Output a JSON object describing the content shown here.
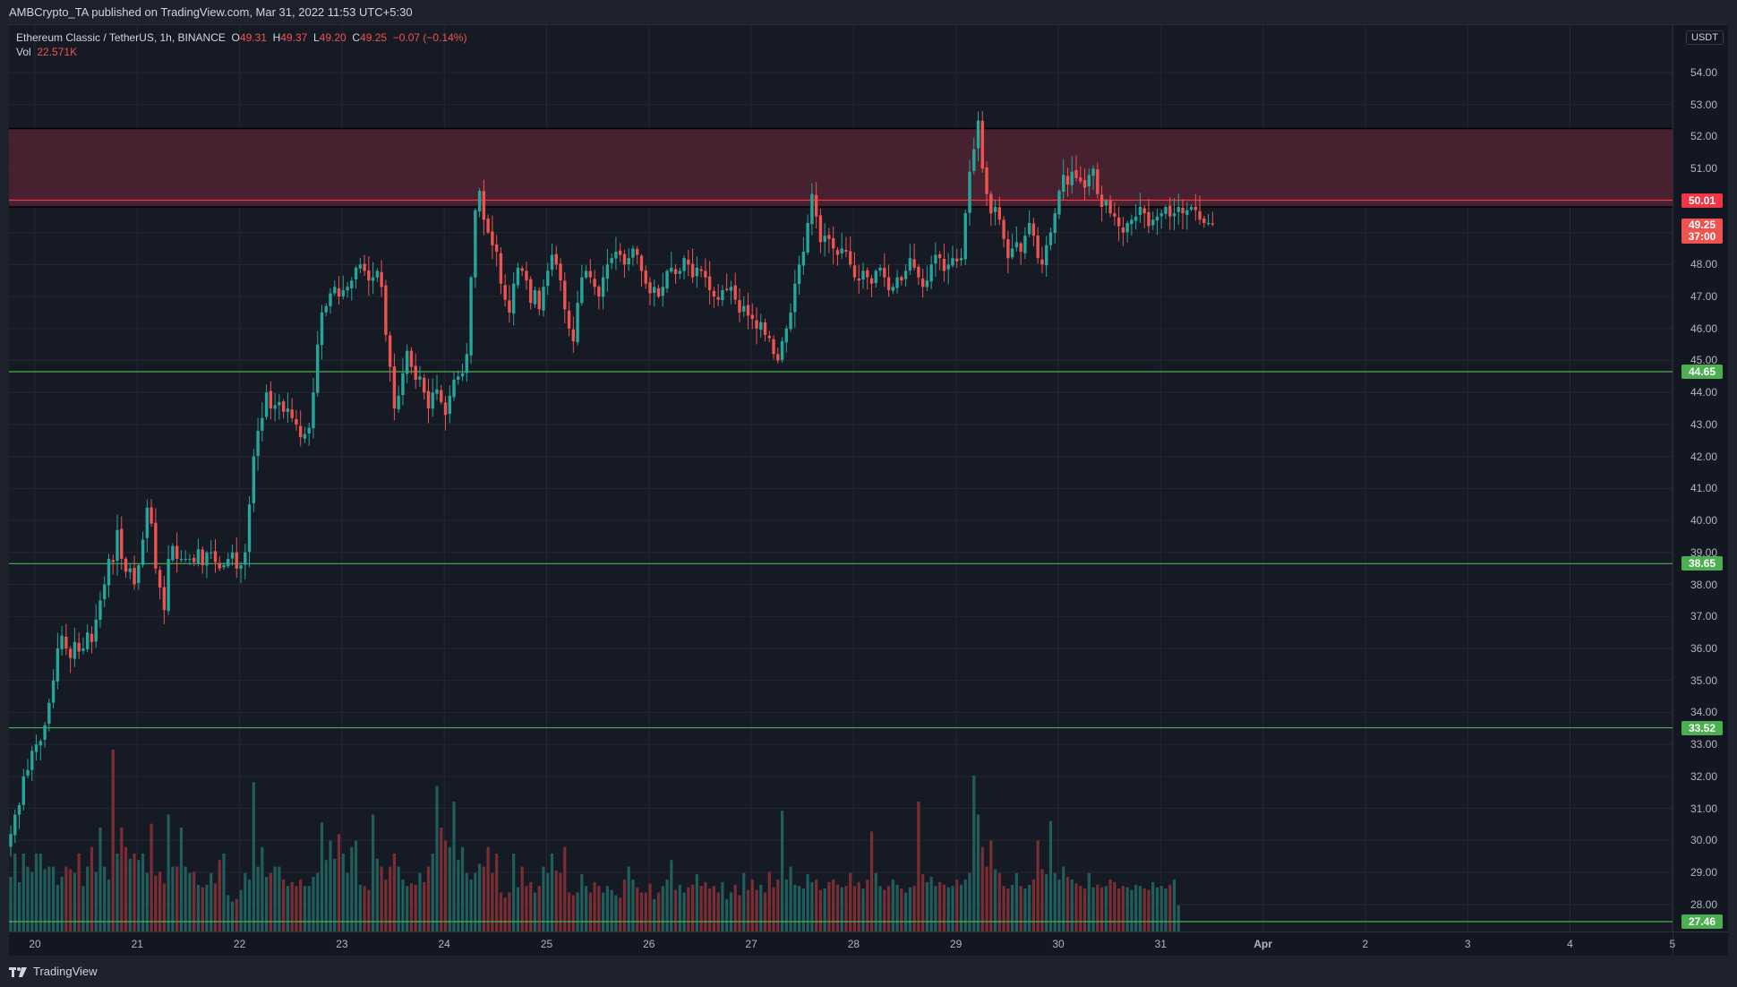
{
  "header": {
    "published": "AMBCrypto_TA published on TradingView.com, Mar 31, 2022 11:53 UTC+5:30"
  },
  "legend": {
    "symbol": "Ethereum Classic / TetherUS, 1h, BINANCE",
    "o_label": "O",
    "o": "49.31",
    "h_label": "H",
    "h": "49.37",
    "l_label": "L",
    "l": "49.20",
    "c_label": "C",
    "c": "49.25",
    "change": "−0.07 (−0.14%)",
    "vol_label": "Vol",
    "vol": "22.571K"
  },
  "axis": {
    "currency": "USDT",
    "price_ticks": [
      "54.00",
      "53.00",
      "52.00",
      "51.00",
      "50.00",
      "49.00",
      "48.00",
      "47.00",
      "46.00",
      "45.00",
      "44.00",
      "43.00",
      "42.00",
      "41.00",
      "40.00",
      "39.00",
      "38.00",
      "37.00",
      "36.00",
      "35.00",
      "34.00",
      "33.00",
      "32.00",
      "31.00",
      "30.00",
      "29.00",
      "28.00"
    ],
    "time_ticks": [
      "20",
      "21",
      "22",
      "23",
      "24",
      "25",
      "26",
      "27",
      "28",
      "29",
      "30",
      "31",
      "Apr",
      "2",
      "3",
      "4",
      "5"
    ]
  },
  "labels": {
    "resistance": "50.01",
    "last_price": "49.25",
    "countdown": "37:00",
    "support1": "44.65",
    "support2": "38.65",
    "support3": "33.52",
    "support4": "27.46"
  },
  "colors": {
    "up": "#26a69a",
    "down": "#ef5350",
    "vol_up": "#1f5e5a",
    "vol_down": "#7a2e33",
    "zone": "#4a222f",
    "support": "#4caf50",
    "resistance": "#f23645",
    "grid": "#242833"
  },
  "footer": {
    "brand": "TradingView"
  },
  "chart_data": {
    "type": "candlestick",
    "title": "Ethereum Classic / TetherUS, 1h, BINANCE",
    "ylabel": "USDT",
    "ylim": [
      27.0,
      55.0
    ],
    "x_range": [
      "Mar 20",
      "Apr 5"
    ],
    "last": {
      "open": 49.31,
      "high": 49.37,
      "low": 49.2,
      "close": 49.25,
      "change": -0.07,
      "change_pct": -0.14,
      "volume": "22.571K"
    },
    "horizontal_levels": [
      {
        "name": "resistance",
        "value": 50.01,
        "color": "#f23645"
      },
      {
        "name": "support",
        "value": 44.65,
        "color": "#4caf50"
      },
      {
        "name": "support",
        "value": 38.65,
        "color": "#4caf50"
      },
      {
        "name": "support",
        "value": 33.52,
        "color": "#4caf50"
      },
      {
        "name": "support",
        "value": 27.46,
        "color": "#4caf50"
      }
    ],
    "zones": [
      {
        "name": "supply-zone",
        "from": 49.8,
        "to": 52.25
      }
    ],
    "daily_closes_approx": {
      "x": [
        "20",
        "21",
        "22",
        "23",
        "24",
        "25",
        "26",
        "27",
        "28",
        "29",
        "30",
        "31"
      ],
      "close": [
        33.0,
        38.8,
        38.6,
        43.8,
        44.0,
        48.2,
        48.0,
        47.2,
        45.5,
        48.3,
        48.3,
        49.5
      ]
    },
    "closes": [
      30.2,
      30.8,
      31.1,
      32.0,
      32.2,
      32.8,
      33.0,
      33.1,
      33.6,
      34.3,
      35.0,
      36.0,
      36.4,
      36.0,
      35.7,
      36.2,
      35.9,
      36.0,
      36.5,
      36.2,
      36.9,
      37.5,
      38.0,
      38.8,
      38.7,
      39.7,
      38.8,
      38.4,
      38.5,
      38.0,
      38.6,
      39.4,
      40.4,
      39.9,
      38.5,
      37.9,
      37.2,
      38.8,
      39.2,
      38.8,
      38.8,
      38.8,
      38.8,
      38.7,
      39.1,
      38.6,
      39.0,
      39.0,
      38.7,
      38.5,
      38.6,
      38.8,
      39.0,
      38.5,
      38.6,
      39.0,
      40.5,
      42.0,
      42.8,
      43.2,
      44.0,
      43.5,
      43.6,
      43.7,
      43.4,
      43.5,
      43.2,
      43.0,
      42.6,
      42.7,
      42.9,
      44.0,
      45.5,
      46.5,
      46.7,
      47.1,
      47.3,
      47.0,
      47.2,
      47.3,
      47.5,
      47.9,
      48.0,
      47.8,
      47.5,
      47.6,
      47.8,
      47.3,
      45.8,
      44.8,
      43.5,
      43.9,
      44.6,
      45.3,
      44.8,
      44.4,
      44.5,
      44.0,
      43.5,
      44.0,
      44.1,
      43.7,
      43.3,
      43.9,
      44.4,
      44.5,
      44.6,
      45.2,
      47.6,
      49.7,
      50.3,
      49.4,
      49.0,
      48.6,
      48.4,
      47.4,
      46.9,
      46.5,
      47.4,
      47.9,
      47.8,
      47.5,
      46.8,
      47.2,
      46.6,
      47.3,
      47.8,
      48.3,
      48.0,
      47.5,
      46.6,
      46.0,
      45.6,
      46.8,
      47.6,
      47.8,
      47.6,
      47.3,
      47.0,
      47.6,
      48.0,
      48.2,
      48.4,
      48.3,
      48.0,
      48.2,
      48.5,
      48.3,
      47.8,
      47.4,
      47.1,
      47.3,
      47.0,
      47.3,
      47.8,
      47.9,
      47.7,
      47.8,
      48.2,
      48.0,
      47.6,
      47.9,
      47.8,
      47.6,
      47.2,
      47.0,
      46.9,
      47.2,
      47.2,
      47.3,
      46.9,
      46.5,
      46.7,
      46.4,
      46.3,
      46.0,
      46.2,
      45.8,
      45.7,
      45.2,
      45.0,
      45.6,
      46.0,
      46.5,
      47.4,
      48.0,
      48.4,
      49.3,
      50.2,
      49.5,
      48.7,
      48.9,
      48.8,
      48.5,
      48.3,
      48.5,
      48.4,
      48.0,
      47.6,
      47.5,
      47.8,
      47.6,
      47.4,
      47.8,
      47.9,
      47.6,
      47.2,
      47.3,
      47.6,
      47.5,
      47.8,
      48.2,
      47.9,
      47.6,
      47.3,
      47.5,
      48.0,
      48.3,
      48.2,
      47.8,
      48.0,
      48.2,
      48.1,
      48.2,
      49.6,
      50.9,
      51.6,
      52.5,
      51.0,
      50.2,
      49.6,
      49.8,
      49.4,
      48.8,
      48.2,
      48.5,
      48.7,
      48.4,
      48.9,
      49.3,
      48.9,
      48.2,
      48.0,
      48.6,
      49.0,
      49.6,
      50.3,
      50.8,
      50.5,
      50.9,
      50.7,
      50.6,
      50.4,
      50.8,
      51.0,
      50.2,
      49.8,
      50.0,
      49.6,
      49.5,
      49.2,
      49.0,
      49.3,
      49.4,
      49.5,
      49.8,
      49.6,
      49.2,
      49.4,
      49.5,
      49.6,
      49.8,
      49.5,
      49.6,
      49.8,
      49.6,
      49.7,
      49.8,
      49.7,
      49.4,
      49.3,
      49.3,
      49.25
    ],
    "volumes": [
      4.2,
      6,
      3.8,
      6,
      5,
      4.6,
      6,
      6,
      4.8,
      5,
      5,
      3.6,
      4.2,
      5,
      4.8,
      4.5,
      6,
      3.5,
      5,
      6.5,
      4.6,
      8,
      5,
      4,
      14,
      6,
      8,
      6.5,
      5.6,
      6,
      5.5,
      6,
      4.5,
      8.3,
      4.3,
      4.6,
      3.7,
      9,
      5,
      5,
      8,
      5,
      4.5,
      4.6,
      3.6,
      3.4,
      3.6,
      4.5,
      3.7,
      5.5,
      6,
      2.8,
      2.3,
      2.5,
      3.2,
      4.5,
      4,
      11.5,
      5,
      6.5,
      4.2,
      4.5,
      5,
      5,
      4,
      3.5,
      3.8,
      3.5,
      4,
      3.5,
      3.5,
      4.2,
      4.5,
      8.4,
      5.5,
      7,
      5.6,
      7.5,
      6,
      4.5,
      6.5,
      7,
      3.6,
      3.5,
      3.2,
      9,
      5.6,
      5,
      4,
      5,
      6,
      5,
      4,
      3.5,
      3.7,
      3.6,
      4.5,
      3.8,
      5,
      6,
      11.2,
      8,
      7,
      6.5,
      10,
      5.5,
      6.5,
      4.5,
      4,
      4.5,
      5.2,
      5,
      6.5,
      4.5,
      6,
      3,
      2.6,
      3,
      6,
      3.4,
      5,
      3.5,
      3.8,
      3,
      3.5,
      5,
      4.5,
      6,
      4.7,
      4.5,
      6.5,
      3,
      2.8,
      3,
      4.4,
      3.5,
      3,
      3.8,
      3.5,
      3,
      3.5,
      3.2,
      2.8,
      2.6,
      4,
      5,
      4,
      3.4,
      3,
      3,
      3.7,
      2.5,
      3,
      3.5,
      4,
      5.5,
      3.2,
      3.6,
      3,
      3.4,
      3.6,
      4.4,
      3.5,
      3.8,
      3.3,
      3.5,
      3,
      3.8,
      2.5,
      3,
      3.6,
      2.8,
      4.5,
      3.2,
      4,
      3.2,
      3.6,
      3,
      4.6,
      3.4,
      4,
      9.3,
      4,
      5,
      3.6,
      3.5,
      3.3,
      4.4,
      3.8,
      4,
      3.2,
      3.3,
      3.8,
      4,
      3.6,
      3.4,
      3.5,
      4.5,
      3.5,
      3.8,
      3.3,
      4,
      7.7,
      4.5,
      3.5,
      3.2,
      3.5,
      4,
      3.6,
      3.3,
      3,
      3.4,
      3.5,
      10,
      4.4,
      3.8,
      4.2,
      3.5,
      3.8,
      3.6,
      3.4,
      3.5,
      4,
      3.6,
      4,
      4.5,
      12,
      9,
      6.5,
      5,
      7,
      4.8,
      4.5,
      3.5,
      3.3,
      3.6,
      4.5,
      3.5,
      3.3,
      3.6,
      4,
      7,
      4.8,
      4.4,
      8.5,
      4.5,
      4,
      5,
      4.2,
      4,
      3.7,
      3.5,
      3.3,
      4.5,
      3.4,
      3.6,
      3.4,
      3.5,
      4,
      3.8,
      3.3,
      3.5,
      3.4,
      3.2,
      3.6,
      3.5,
      3.3,
      3.2,
      3.8,
      3.4,
      3.5,
      3.3,
      3.6,
      4,
      2
    ]
  }
}
